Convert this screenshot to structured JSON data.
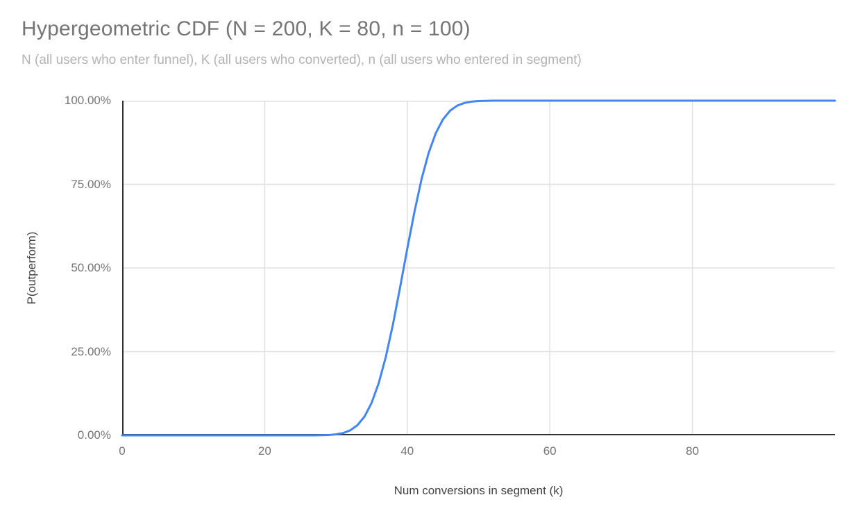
{
  "colors": {
    "series_line": "#4285f4",
    "gridline": "#e0e0e0",
    "axis_line": "#333333",
    "title_text": "#757575",
    "subtitle_text": "#b3b3b3",
    "tick_label": "#757575",
    "axis_title_text": "#424242",
    "background": "#ffffff"
  },
  "chart_data": {
    "type": "line",
    "title": "Hypergeometric CDF (N = 200, K = 80, n = 100)",
    "subtitle": "N (all users who enter funnel), K (all users who converted), n (all users who entered in segment)",
    "xlabel": "Num conversions in segment (k)",
    "ylabel": "P(outperform)",
    "parameters": {
      "N": 200,
      "K": 80,
      "n": 100
    },
    "xlim": [
      0,
      100
    ],
    "ylim": [
      0,
      1
    ],
    "x_ticks": [
      0,
      20,
      40,
      60,
      80
    ],
    "x_tick_labels": [
      "0",
      "20",
      "40",
      "60",
      "80"
    ],
    "y_ticks": [
      0,
      0.25,
      0.5,
      0.75,
      1
    ],
    "y_tick_labels": [
      "0.00%",
      "25.00%",
      "50.00%",
      "75.00%",
      "100.00%"
    ],
    "grid": true,
    "legend": "none",
    "series": [
      {
        "name": "P(outperform)",
        "color": "#4285f4",
        "x_start": 0,
        "x_step": 1,
        "y": [
          0,
          0,
          0,
          0,
          0,
          0,
          0,
          0,
          0,
          0,
          0,
          0,
          0,
          0,
          0,
          0,
          0,
          0,
          0,
          0,
          0,
          0,
          0,
          0,
          0,
          0,
          0,
          0.0001,
          0.0004,
          0.0011,
          0.0029,
          0.0069,
          0.015,
          0.0301,
          0.056,
          0.0969,
          0.1561,
          0.2353,
          0.3326,
          0.4426,
          0.5574,
          0.6674,
          0.7647,
          0.8439,
          0.9031,
          0.944,
          0.9699,
          0.985,
          0.9931,
          0.9971,
          0.9989,
          0.9996,
          0.9999,
          1,
          1,
          1,
          1,
          1,
          1,
          1,
          1,
          1,
          1,
          1,
          1,
          1,
          1,
          1,
          1,
          1,
          1,
          1,
          1,
          1,
          1,
          1,
          1,
          1,
          1,
          1,
          1,
          1,
          1,
          1,
          1,
          1,
          1,
          1,
          1,
          1,
          1,
          1,
          1,
          1,
          1,
          1,
          1,
          1,
          1,
          1,
          1
        ]
      }
    ]
  }
}
